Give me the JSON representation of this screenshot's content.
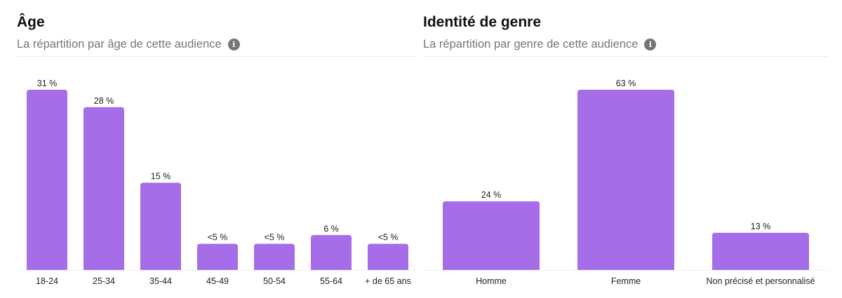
{
  "chart_data": [
    {
      "type": "bar",
      "title": "Âge",
      "subtitle": "La répartition par âge de cette audience",
      "info_icon": "info-icon",
      "categories": [
        "18-24",
        "25-34",
        "35-44",
        "45-49",
        "50-54",
        "55-64",
        "+ de 65 ans"
      ],
      "values": [
        31,
        28,
        15,
        4.5,
        4.5,
        6,
        4.5
      ],
      "value_labels": [
        "31 %",
        "28 %",
        "15 %",
        "<5 %",
        "<5 %",
        "6 %",
        "<5 %"
      ],
      "ylim": [
        0,
        31
      ],
      "grid": false,
      "color": "#a66de8"
    },
    {
      "type": "bar",
      "title": "Identité de genre",
      "subtitle": "La répartition par genre de cette audience",
      "info_icon": "info-icon",
      "categories": [
        "Homme",
        "Femme",
        "Non précisé et personnalisé"
      ],
      "values": [
        24,
        63,
        13
      ],
      "value_labels": [
        "24 %",
        "63 %",
        "13 %"
      ],
      "ylim": [
        0,
        63
      ],
      "grid": false,
      "color": "#a66de8"
    }
  ]
}
